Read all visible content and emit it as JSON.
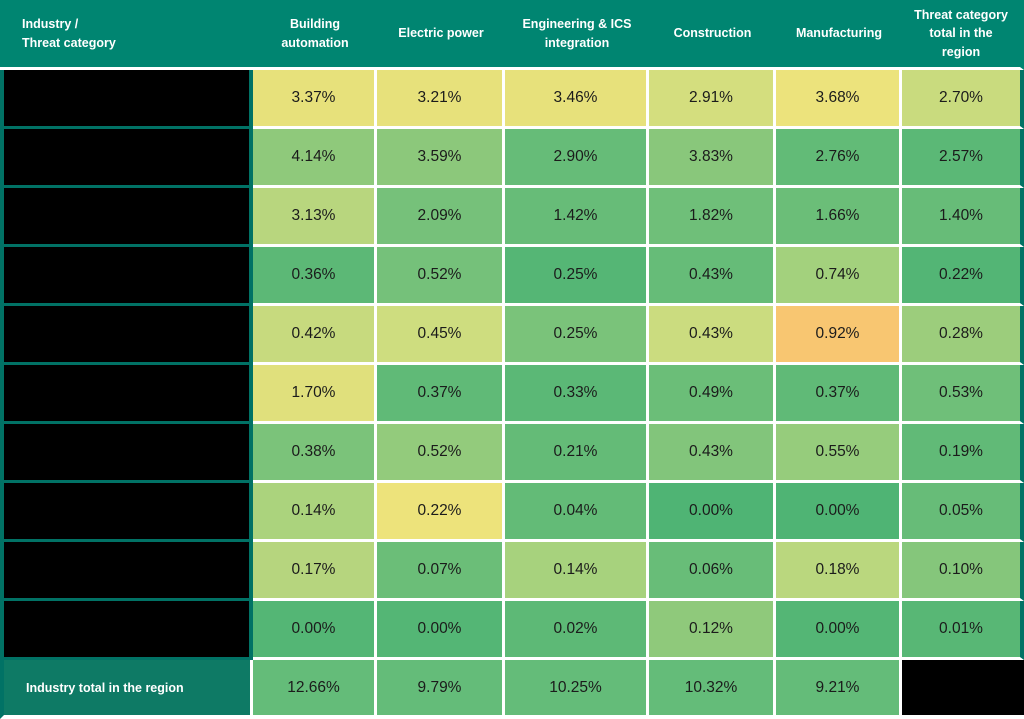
{
  "header": {
    "row_label_line1": "Industry /",
    "row_label_line2": "Threat category",
    "columns": [
      "Building automation",
      "Electric power",
      "Engineering & ICS integration",
      "Construction",
      "Manufacturing",
      "Threat category total in the region"
    ]
  },
  "body": {
    "rows": [
      {
        "label": "",
        "redacted": true,
        "values": [
          "3.37%",
          "3.21%",
          "3.46%",
          "2.91%",
          "3.68%",
          "2.70%"
        ],
        "colors": [
          "#e7e17b",
          "#e7e17b",
          "#e7e17b",
          "#d4de7e",
          "#ece37c",
          "#c9db7e"
        ]
      },
      {
        "label": "",
        "redacted": true,
        "values": [
          "4.14%",
          "3.59%",
          "2.90%",
          "3.83%",
          "2.76%",
          "2.57%"
        ],
        "colors": [
          "#8fc97b",
          "#8cc87b",
          "#66bc78",
          "#89c77b",
          "#62bb77",
          "#5bb876"
        ]
      },
      {
        "label": "",
        "redacted": true,
        "values": [
          "3.13%",
          "2.09%",
          "1.42%",
          "1.82%",
          "1.66%",
          "1.40%"
        ],
        "colors": [
          "#b8d67e",
          "#76c17a",
          "#67bc78",
          "#6fbf79",
          "#6bbe78",
          "#67bc78"
        ]
      },
      {
        "label": "",
        "redacted": true,
        "values": [
          "0.36%",
          "0.52%",
          "0.25%",
          "0.43%",
          "0.74%",
          "0.22%"
        ],
        "colors": [
          "#5cb876",
          "#75c17a",
          "#55b675",
          "#66bc78",
          "#a3d17d",
          "#53b575"
        ]
      },
      {
        "label": "",
        "redacted": true,
        "values": [
          "0.42%",
          "0.45%",
          "0.25%",
          "0.43%",
          "0.92%",
          "0.28%"
        ],
        "colors": [
          "#c7da7e",
          "#cedd7f",
          "#7ac37a",
          "#cbdc7f",
          "#f8c671",
          "#9ccd7c"
        ]
      },
      {
        "label": "",
        "redacted": true,
        "values": [
          "1.70%",
          "0.37%",
          "0.33%",
          "0.49%",
          "0.37%",
          "0.53%"
        ],
        "colors": [
          "#e0e07c",
          "#60ba77",
          "#5bb876",
          "#6bbe78",
          "#60ba77",
          "#6fbf79"
        ]
      },
      {
        "label": "",
        "redacted": true,
        "values": [
          "0.38%",
          "0.52%",
          "0.21%",
          "0.43%",
          "0.55%",
          "0.19%"
        ],
        "colors": [
          "#7bc37a",
          "#93cb7c",
          "#64bb77",
          "#82c57b",
          "#96cc7c",
          "#61ba77"
        ]
      },
      {
        "label": "",
        "redacted": true,
        "values": [
          "0.14%",
          "0.22%",
          "0.04%",
          "0.00%",
          "0.00%",
          "0.05%"
        ],
        "colors": [
          "#abd37d",
          "#ede37b",
          "#63bb77",
          "#4fb474",
          "#4fb474",
          "#67bc78"
        ]
      },
      {
        "label": "",
        "redacted": true,
        "values": [
          "0.17%",
          "0.07%",
          "0.14%",
          "0.06%",
          "0.18%",
          "0.10%"
        ],
        "colors": [
          "#b6d57e",
          "#6bbe78",
          "#a7d27d",
          "#68bd78",
          "#bad77e",
          "#85c67b"
        ]
      },
      {
        "label": "",
        "redacted": true,
        "values": [
          "0.00%",
          "0.00%",
          "0.02%",
          "0.12%",
          "0.00%",
          "0.01%"
        ],
        "colors": [
          "#54b675",
          "#54b675",
          "#5db976",
          "#8fc97b",
          "#54b675",
          "#58b775"
        ]
      }
    ]
  },
  "footer": {
    "label": "Industry total in the region",
    "values": [
      "12.66%",
      "9.79%",
      "10.25%",
      "10.32%",
      "9.21%"
    ],
    "redacted_total": true
  },
  "colors": {
    "header_bg": "#008571",
    "header_text": "#ffffff",
    "teal_line": "#017265",
    "footer_label_bg": "#0e7a65",
    "footer_value_bg": "#64bc79",
    "grid": "#ffffff",
    "label_bg": "#000000",
    "redacted_bg": "#000000",
    "value_text": "#1b1b1b"
  },
  "chart_data": {
    "type": "heatmap",
    "title": "Industry / Threat category",
    "unit": "%",
    "columns": [
      "Building automation",
      "Electric power",
      "Engineering & ICS integration",
      "Construction",
      "Manufacturing",
      "Threat category total in the region"
    ],
    "row_labels_redacted": true,
    "rows": [
      [
        3.37,
        3.21,
        3.46,
        2.91,
        3.68,
        2.7
      ],
      [
        4.14,
        3.59,
        2.9,
        3.83,
        2.76,
        2.57
      ],
      [
        3.13,
        2.09,
        1.42,
        1.82,
        1.66,
        1.4
      ],
      [
        0.36,
        0.52,
        0.25,
        0.43,
        0.74,
        0.22
      ],
      [
        0.42,
        0.45,
        0.25,
        0.43,
        0.92,
        0.28
      ],
      [
        1.7,
        0.37,
        0.33,
        0.49,
        0.37,
        0.53
      ],
      [
        0.38,
        0.52,
        0.21,
        0.43,
        0.55,
        0.19
      ],
      [
        0.14,
        0.22,
        0.04,
        0.0,
        0.0,
        0.05
      ],
      [
        0.17,
        0.07,
        0.14,
        0.06,
        0.18,
        0.1
      ],
      [
        0.0,
        0.0,
        0.02,
        0.12,
        0.0,
        0.01
      ]
    ],
    "totals_row_label": "Industry total in the region",
    "column_totals": [
      12.66,
      9.79,
      10.25,
      10.32,
      9.21,
      null
    ],
    "legend": "green = low share, yellow/orange = high share (3-color scale)"
  }
}
